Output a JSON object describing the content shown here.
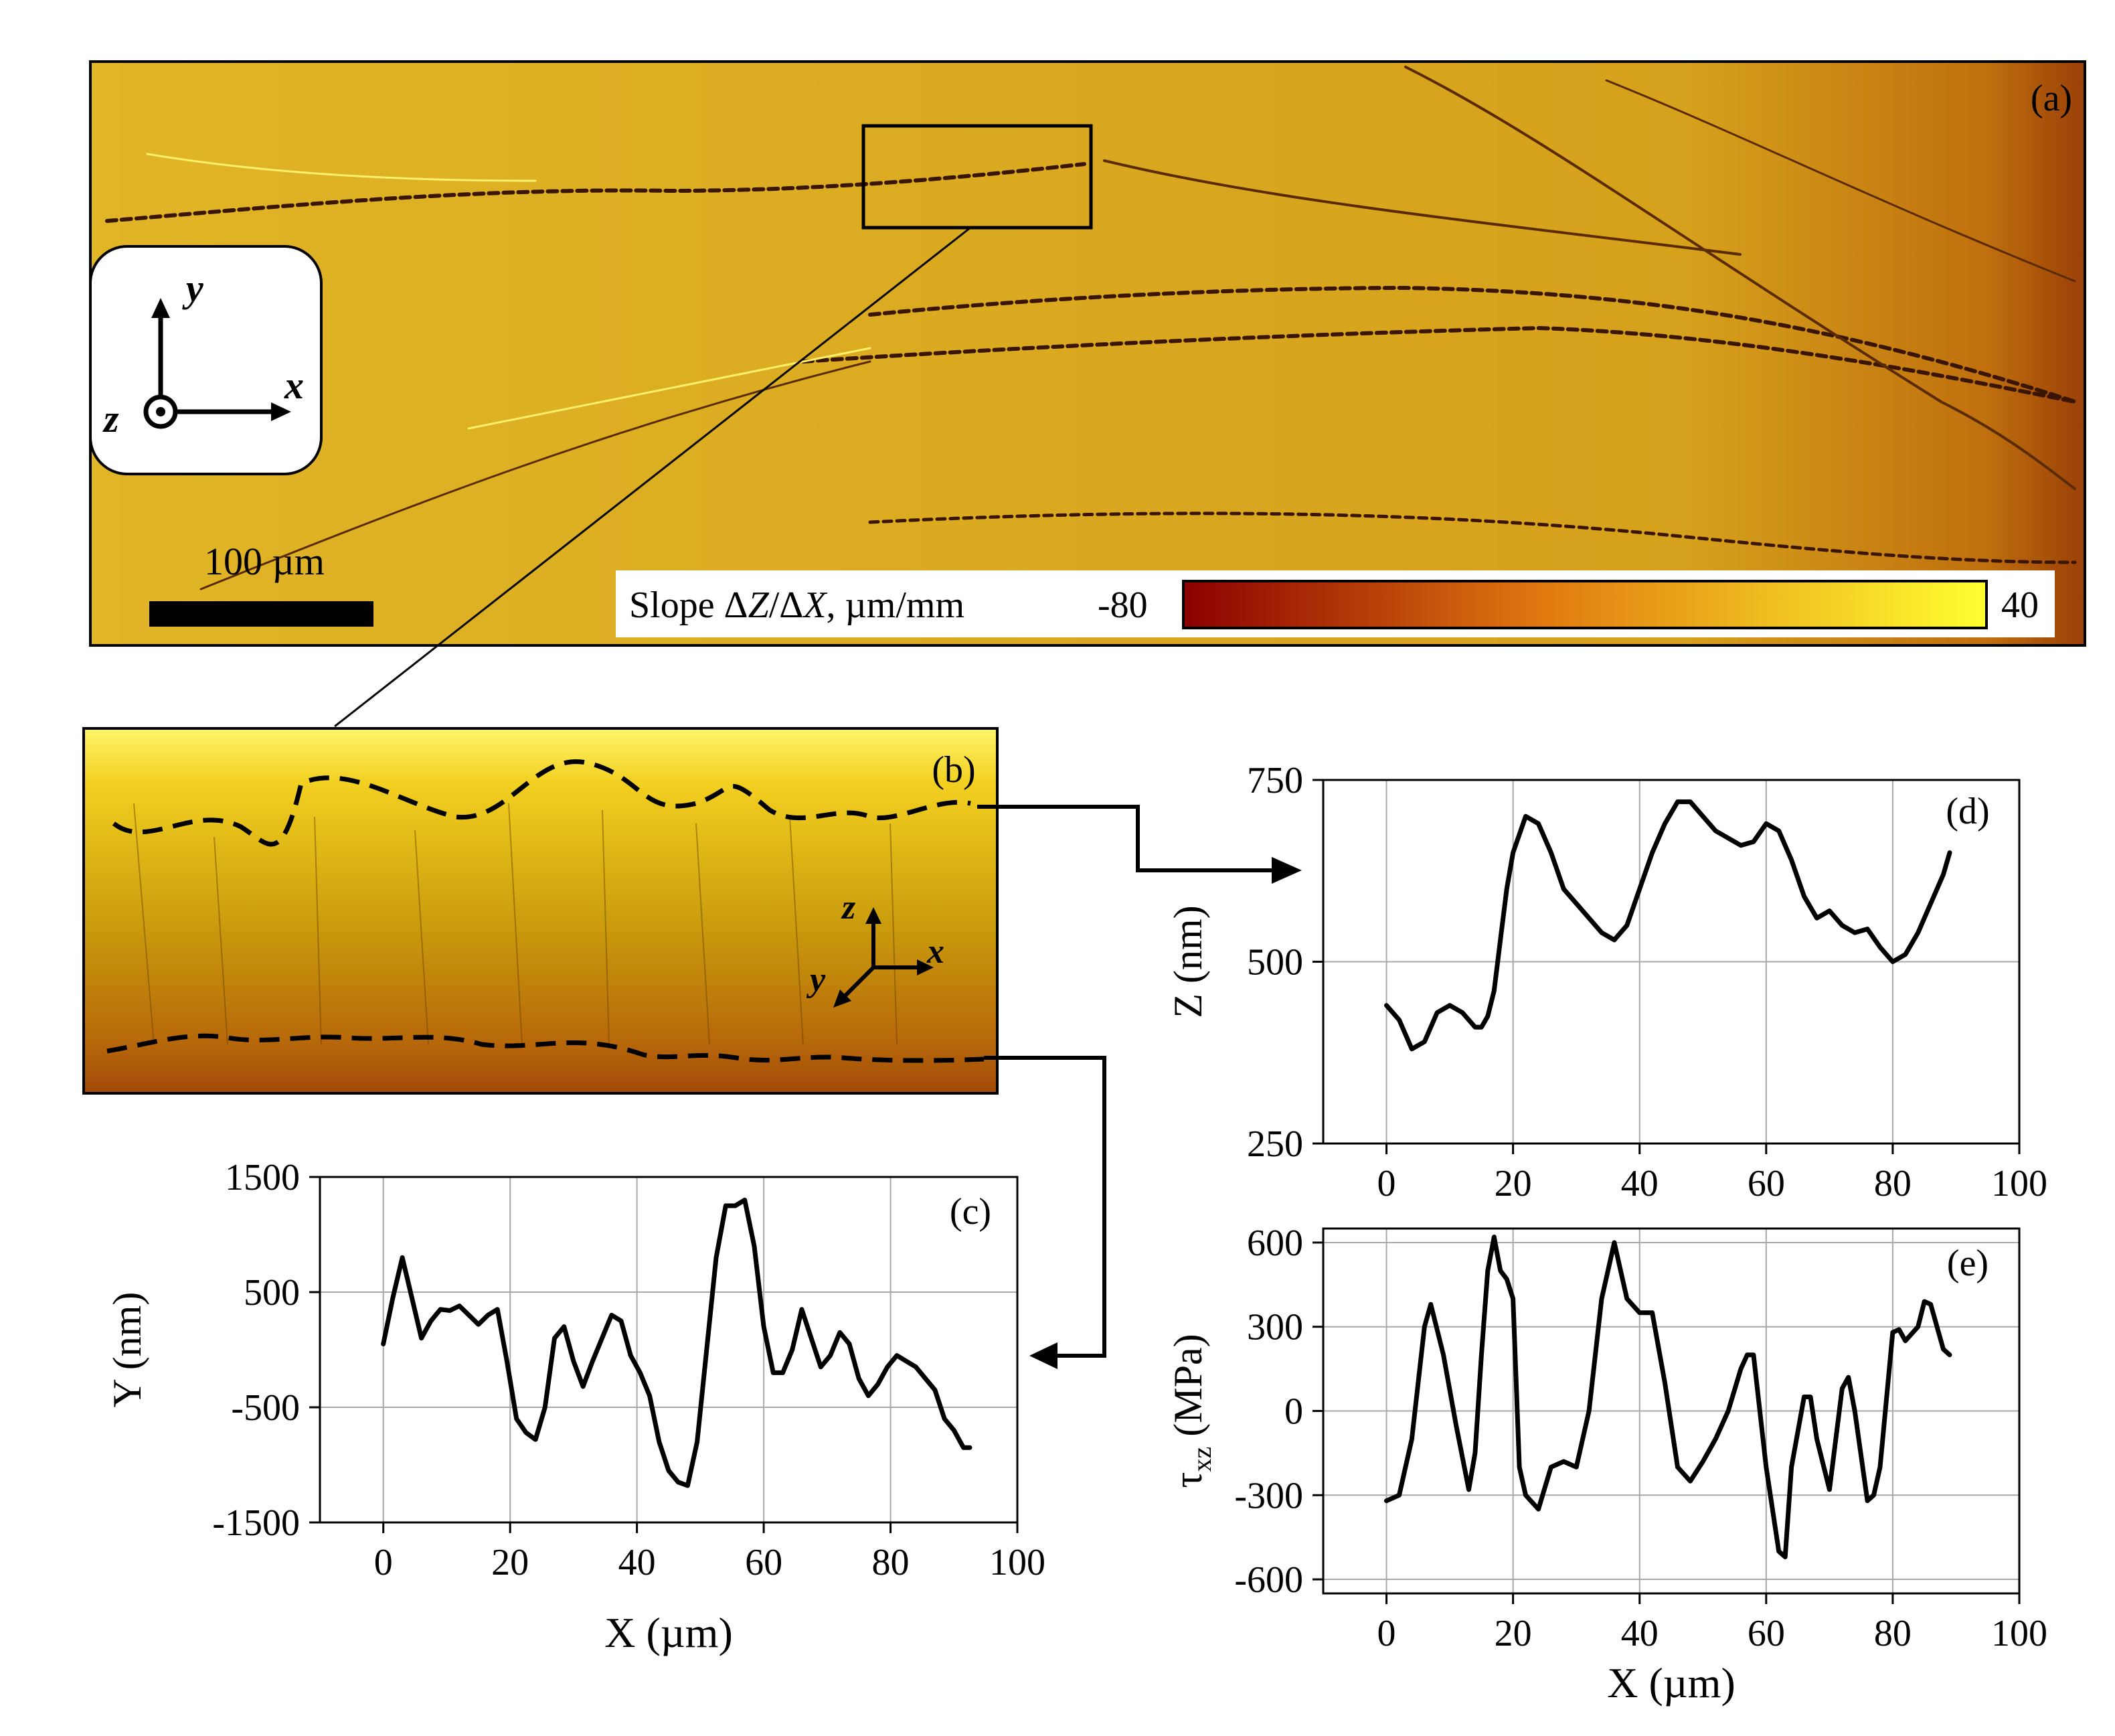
{
  "panel_a": {
    "label": "(a)",
    "axes_icon": {
      "y": "y",
      "x": "x",
      "z": "z"
    },
    "scale_bar": "100 µm",
    "colorbar": {
      "label_pre": "Slope Δ",
      "label_z": "Z",
      "label_mid": "/Δ",
      "label_x": "X",
      "label_post": ", µm/mm",
      "min": "-80",
      "max": "40",
      "color_low": "#8b0000",
      "color_mid": "#e07a10",
      "color_high": "#ffff30"
    },
    "background_color": "#d9a81e"
  },
  "panel_b": {
    "label": "(b)",
    "axes_icon": {
      "z": "z",
      "x": "x",
      "y": "y"
    }
  },
  "chart_data": [
    {
      "id": "c",
      "label": "(c)",
      "type": "line",
      "xlabel": "X (µm)",
      "ylabel": "Y (nm)",
      "xlim": [
        -10,
        100
      ],
      "ylim": [
        -1500,
        1500
      ],
      "xticks": [
        0,
        20,
        40,
        60,
        80,
        100
      ],
      "yticks": [
        -1500,
        -500,
        500,
        1500
      ],
      "xtick_labels": [
        "0",
        "20",
        "40",
        "60",
        "80",
        "100"
      ],
      "ytick_labels": [
        "-1500",
        "-500",
        "500",
        "1500"
      ],
      "grid": true,
      "x": [
        0,
        1.5,
        3,
        4.5,
        6,
        7.5,
        9,
        10.5,
        12,
        13.5,
        15,
        16.5,
        18,
        19.5,
        21,
        22.5,
        24,
        25.5,
        27,
        28.5,
        30,
        31.5,
        33,
        34.5,
        36,
        37.5,
        39,
        40.5,
        42,
        43.5,
        45,
        46.5,
        48,
        49.5,
        51,
        52.5,
        54,
        55.5,
        57,
        58.5,
        60,
        61.5,
        63,
        64.5,
        66,
        67.5,
        69,
        70.5,
        72,
        73.5,
        75,
        76.5,
        78,
        79.5,
        81,
        82.5,
        84,
        85.5,
        87,
        88.5,
        90,
        91.5,
        92.5
      ],
      "y": [
        50,
        450,
        800,
        450,
        100,
        250,
        350,
        340,
        380,
        300,
        220,
        300,
        350,
        -100,
        -600,
        -720,
        -780,
        -500,
        100,
        200,
        -100,
        -320,
        -100,
        100,
        300,
        250,
        -50,
        -200,
        -400,
        -800,
        -1050,
        -1150,
        -1180,
        -800,
        0,
        800,
        1250,
        1250,
        1300,
        900,
        200,
        -200,
        -200,
        0,
        350,
        100,
        -150,
        -50,
        150,
        50,
        -250,
        -400,
        -300,
        -150,
        -50,
        -100,
        -150,
        -250,
        -350,
        -600,
        -700,
        -850,
        -850
      ]
    },
    {
      "id": "d",
      "label": "(d)",
      "type": "line",
      "xlabel": "",
      "ylabel": "Z (nm)",
      "xlim": [
        -10,
        100
      ],
      "ylim": [
        250,
        750
      ],
      "xticks": [
        0,
        20,
        40,
        60,
        80,
        100
      ],
      "yticks": [
        250,
        500,
        750
      ],
      "xtick_labels": [
        "0",
        "20",
        "40",
        "60",
        "80",
        "100"
      ],
      "ytick_labels": [
        "250",
        "500",
        "750"
      ],
      "grid": true,
      "x": [
        0,
        2,
        4,
        6,
        8,
        10,
        12,
        14,
        15,
        16,
        17,
        18,
        19,
        20,
        22,
        24,
        26,
        28,
        30,
        32,
        34,
        36,
        38,
        40,
        42,
        44,
        46,
        48,
        50,
        52,
        54,
        56,
        58,
        60,
        62,
        64,
        66,
        68,
        70,
        72,
        74,
        76,
        78,
        80,
        82,
        84,
        86,
        88,
        89
      ],
      "y": [
        440,
        420,
        380,
        390,
        430,
        440,
        430,
        410,
        410,
        425,
        460,
        530,
        600,
        650,
        700,
        690,
        650,
        600,
        580,
        560,
        540,
        530,
        550,
        600,
        650,
        690,
        720,
        720,
        700,
        680,
        670,
        660,
        665,
        690,
        680,
        640,
        590,
        560,
        570,
        550,
        540,
        545,
        520,
        500,
        510,
        540,
        580,
        620,
        650
      ]
    },
    {
      "id": "e",
      "label": "(e)",
      "type": "line",
      "xlabel": "X (µm)",
      "ylabel": "τxz (MPa)",
      "ylabel_main": "τ",
      "ylabel_sub": "xz",
      "ylabel_unit": " (MPa)",
      "xlim": [
        -10,
        100
      ],
      "ylim": [
        -650,
        650
      ],
      "xticks": [
        0,
        20,
        40,
        60,
        80,
        100
      ],
      "yticks": [
        -600,
        -300,
        0,
        300,
        600
      ],
      "xtick_labels": [
        "0",
        "20",
        "40",
        "60",
        "80",
        "100"
      ],
      "ytick_labels": [
        "-600",
        "-300",
        "0",
        "300",
        "600"
      ],
      "grid": true,
      "x": [
        0,
        2,
        4,
        6,
        7,
        9,
        11,
        13,
        14,
        15,
        16,
        17,
        18,
        19,
        20,
        21,
        22,
        24,
        26,
        28,
        30,
        32,
        34,
        36,
        38,
        40,
        42,
        44,
        46,
        48,
        50,
        52,
        54,
        56,
        57,
        58,
        60,
        62,
        63,
        64,
        66,
        67,
        68,
        70,
        72,
        73,
        74,
        76,
        77,
        78,
        80,
        81,
        82,
        84,
        85,
        86,
        88,
        89
      ],
      "y": [
        -320,
        -300,
        -100,
        300,
        380,
        200,
        -50,
        -280,
        -150,
        200,
        500,
        620,
        500,
        470,
        400,
        -200,
        -300,
        -350,
        -200,
        -180,
        -200,
        0,
        400,
        600,
        400,
        350,
        350,
        100,
        -200,
        -250,
        -180,
        -100,
        0,
        150,
        200,
        200,
        -200,
        -500,
        -520,
        -200,
        50,
        50,
        -100,
        -280,
        80,
        120,
        0,
        -320,
        -300,
        -200,
        280,
        290,
        250,
        300,
        390,
        380,
        220,
        200
      ]
    }
  ]
}
